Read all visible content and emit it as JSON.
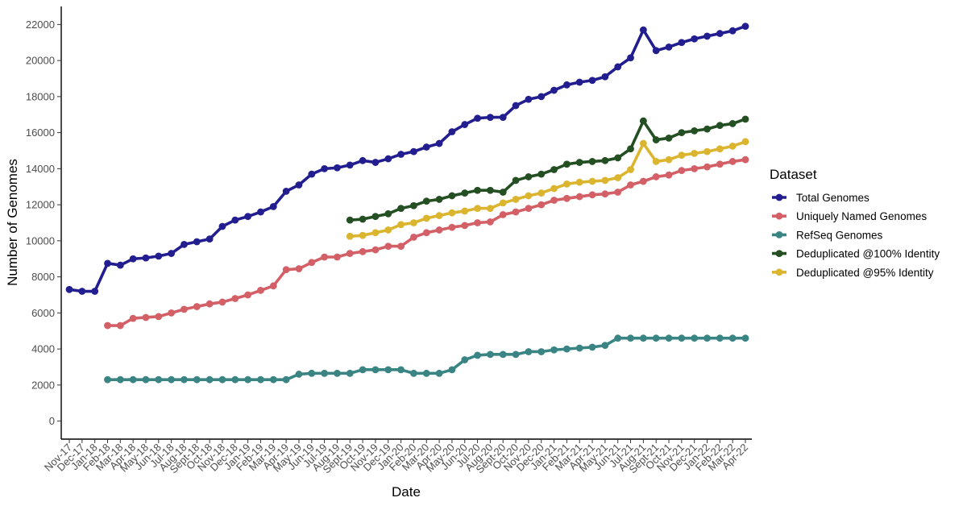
{
  "chart_data": {
    "type": "line",
    "xlabel": "Date",
    "ylabel": "Number of Genomes",
    "ylim": [
      -1000,
      23000
    ],
    "yticks": [
      0,
      2000,
      4000,
      6000,
      8000,
      10000,
      12000,
      14000,
      16000,
      18000,
      20000,
      22000
    ],
    "grid": false,
    "legend": {
      "title": "Dataset",
      "placement": "right"
    },
    "categories": [
      "Nov-17",
      "Dec-17",
      "Jan-18",
      "Feb-18",
      "Mar-18",
      "Apr-18",
      "May-18",
      "Jun-18",
      "Jul-18",
      "Aug-18",
      "Sept-18",
      "Oct-18",
      "Nov-18",
      "Dec-18",
      "Jan-19",
      "Feb-19",
      "Mar-19",
      "Apr-19",
      "May-19",
      "Jun-19",
      "Jul-19",
      "Aug-19",
      "Sept-19",
      "Oct-19",
      "Nov-19",
      "Dec-19",
      "Jan-20",
      "Feb-20",
      "Mar-20",
      "Apr-20",
      "May-20",
      "Jun-20",
      "Jul-20",
      "Aug-20",
      "Sept-20",
      "Oct-20",
      "Nov-20",
      "Dec-20",
      "Jan-21",
      "Feb-21",
      "Mar-21",
      "Apr-21",
      "May-21",
      "Jun-21",
      "Jul-21",
      "Aug-21",
      "Sept-21",
      "Oct-21",
      "Nov-21",
      "Dec-21",
      "Jan-22",
      "Feb-22",
      "Mar-22",
      "Apr-22"
    ],
    "series": [
      {
        "name": "Total Genomes",
        "color": "#231E8F",
        "values": [
          7300,
          7200,
          7200,
          8750,
          8650,
          9000,
          9050,
          9150,
          9300,
          9800,
          9950,
          10100,
          10800,
          11150,
          11350,
          11600,
          11900,
          12750,
          13100,
          13700,
          14000,
          14050,
          14200,
          14450,
          14350,
          14550,
          14800,
          14950,
          15200,
          15400,
          16050,
          16450,
          16800,
          16850,
          16850,
          17500,
          17850,
          18000,
          18350,
          18650,
          18800,
          18900,
          19100,
          19650,
          20150,
          21700,
          20550,
          20750,
          21000,
          21200,
          21350,
          21500,
          21650,
          21900
        ]
      },
      {
        "name": "Uniquely Named Genomes",
        "color": "#D35F67",
        "values": [
          null,
          null,
          null,
          5300,
          5300,
          5700,
          5750,
          5800,
          6000,
          6200,
          6350,
          6500,
          6600,
          6800,
          7000,
          7250,
          7500,
          8400,
          8450,
          8800,
          9100,
          9100,
          9300,
          9400,
          9500,
          9700,
          9700,
          10200,
          10450,
          10600,
          10750,
          10850,
          11000,
          11050,
          11450,
          11600,
          11800,
          12000,
          12250,
          12350,
          12450,
          12550,
          12600,
          12700,
          13100,
          13300,
          13550,
          13650,
          13900,
          14000,
          14100,
          14250,
          14400,
          14500
        ]
      },
      {
        "name": "RefSeq Genomes",
        "color": "#3A8484",
        "values": [
          null,
          null,
          null,
          2300,
          2300,
          2300,
          2300,
          2300,
          2300,
          2300,
          2300,
          2300,
          2300,
          2300,
          2300,
          2300,
          2300,
          2300,
          2600,
          2650,
          2650,
          2650,
          2650,
          2850,
          2850,
          2850,
          2850,
          2650,
          2650,
          2650,
          2850,
          3400,
          3650,
          3700,
          3700,
          3700,
          3850,
          3850,
          3950,
          4000,
          4050,
          4100,
          4200,
          4600,
          4600,
          4600,
          4600,
          4600,
          4600,
          4600,
          4600,
          4600,
          4600,
          4600
        ]
      },
      {
        "name": "Deduplicated @100% Identity",
        "color": "#234F22",
        "values": [
          null,
          null,
          null,
          null,
          null,
          null,
          null,
          null,
          null,
          null,
          null,
          null,
          null,
          null,
          null,
          null,
          null,
          null,
          null,
          null,
          null,
          null,
          11150,
          11200,
          11350,
          11500,
          11800,
          11950,
          12200,
          12300,
          12500,
          12650,
          12800,
          12800,
          12700,
          13350,
          13550,
          13700,
          13950,
          14250,
          14350,
          14400,
          14450,
          14600,
          15100,
          16650,
          15600,
          15700,
          16000,
          16100,
          16200,
          16400,
          16500,
          16750
        ]
      },
      {
        "name": "Deduplicated @95% Identity",
        "color": "#DBB52F",
        "values": [
          null,
          null,
          null,
          null,
          null,
          null,
          null,
          null,
          null,
          null,
          null,
          null,
          null,
          null,
          null,
          null,
          null,
          null,
          null,
          null,
          null,
          null,
          10250,
          10300,
          10450,
          10600,
          10900,
          11000,
          11250,
          11400,
          11550,
          11650,
          11800,
          11800,
          12100,
          12300,
          12500,
          12650,
          12900,
          13150,
          13250,
          13300,
          13350,
          13500,
          13950,
          15400,
          14400,
          14500,
          14750,
          14850,
          14950,
          15100,
          15250,
          15500
        ]
      }
    ]
  }
}
